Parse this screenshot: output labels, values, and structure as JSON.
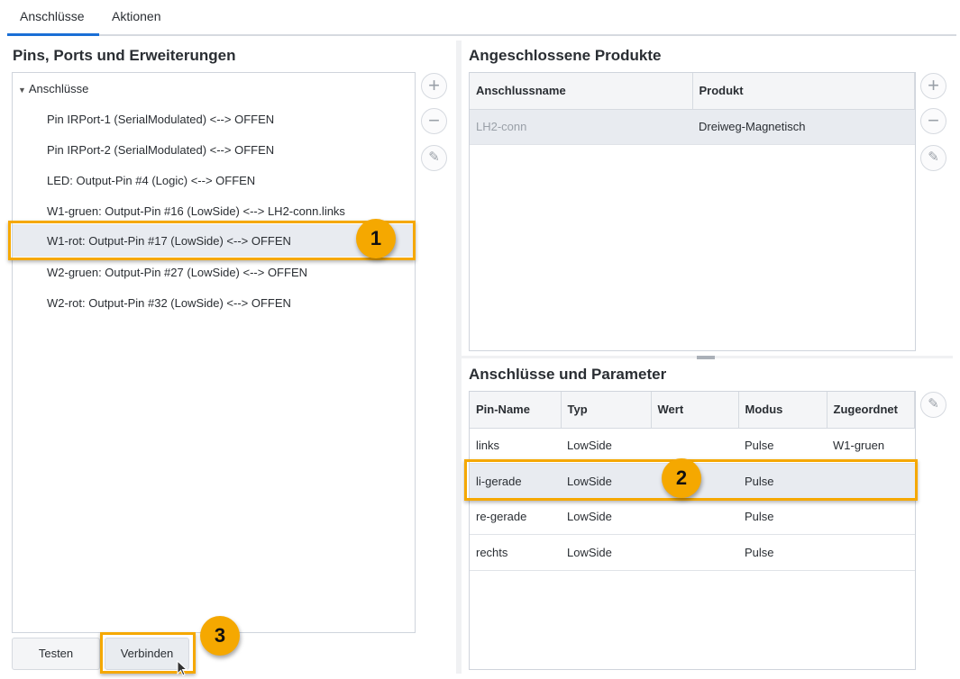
{
  "tabs": [
    {
      "label": "Anschlüsse",
      "active": true
    },
    {
      "label": "Aktionen",
      "active": false
    }
  ],
  "left": {
    "title": "Pins, Ports und Erweiterungen",
    "tree_root": "Anschlüsse",
    "items": [
      "Pin IRPort-1 (SerialModulated) <--> OFFEN",
      "Pin IRPort-2 (SerialModulated) <--> OFFEN",
      "LED: Output-Pin #4 (Logic) <--> OFFEN",
      "W1-gruen: Output-Pin #16 (LowSide) <--> LH2-conn.links",
      "W1-rot: Output-Pin #17 (LowSide) <--> OFFEN",
      "W2-gruen: Output-Pin #27 (LowSide) <--> OFFEN",
      "W2-rot: Output-Pin #32 (LowSide) <--> OFFEN"
    ],
    "selected_index": 4,
    "test_button": "Testen",
    "connect_button": "Verbinden"
  },
  "products": {
    "title": "Angeschlossene Produkte",
    "columns": [
      "Anschlussname",
      "Produkt"
    ],
    "rows": [
      [
        "LH2-conn",
        "Dreiweg-Magnetisch"
      ]
    ]
  },
  "params": {
    "title": "Anschlüsse und Parameter",
    "columns": [
      "Pin-Name",
      "Typ",
      "Wert",
      "Modus",
      "Zugeordnet"
    ],
    "rows": [
      [
        "links",
        "LowSide",
        "",
        "Pulse",
        "W1-gruen"
      ],
      [
        "li-gerade",
        "LowSide",
        "",
        "Pulse",
        ""
      ],
      [
        "re-gerade",
        "LowSide",
        "",
        "Pulse",
        ""
      ],
      [
        "rechts",
        "LowSide",
        "",
        "Pulse",
        ""
      ]
    ],
    "selected_index": 1
  },
  "badges": [
    "1",
    "2",
    "3"
  ],
  "colors": {
    "accent": "#1a6fd6",
    "highlight": "#f5a800",
    "selection": "#e8ebf0"
  }
}
